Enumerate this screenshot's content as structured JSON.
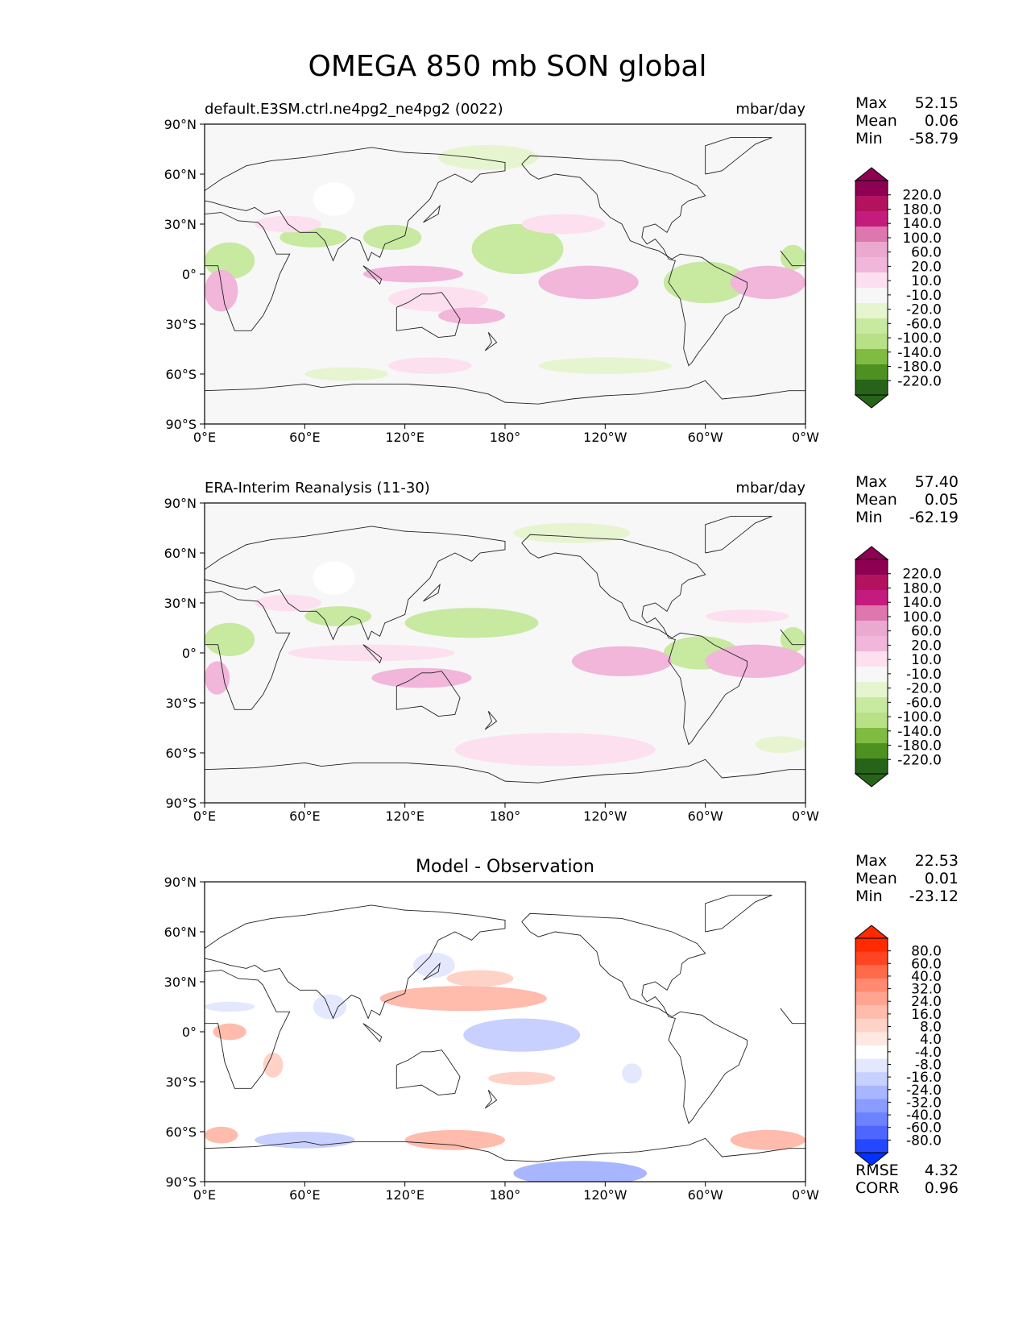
{
  "figure": {
    "title": "OMEGA 850 mb SON global"
  },
  "chart_data": [
    {
      "type": "heatmap",
      "panel": "model",
      "title_left": "default.E3SM.ctrl.ne4pg2_ne4pg2 (0022)",
      "title_right": "mbar/day",
      "stats": [
        {
          "label": "Max",
          "value": "52.15"
        },
        {
          "label": "Mean",
          "value": "0.06"
        },
        {
          "label": "Min",
          "value": "-58.79"
        }
      ],
      "x_ticks": [
        "0°E",
        "60°E",
        "120°E",
        "180°",
        "120°W",
        "60°W",
        "0°W"
      ],
      "y_ticks": [
        "90°N",
        "60°N",
        "30°N",
        "0°",
        "30°S",
        "60°S",
        "90°S"
      ],
      "colorbar": {
        "labels": [
          "220.0",
          "180.0",
          "140.0",
          "100.0",
          "60.0",
          "20.0",
          "10.0",
          "-10.0",
          "-20.0",
          "-60.0",
          "-100.0",
          "-140.0",
          "-180.0",
          "-220.0"
        ],
        "colors": [
          "#8e0152",
          "#b3125e",
          "#c51b7d",
          "#de77ae",
          "#eba9d0",
          "#f1b6da",
          "#fde0ef",
          "#f7f7f7",
          "#e6f5d0",
          "#c7e9a0",
          "#b8e186",
          "#7fbc41",
          "#4d9221",
          "#276419"
        ],
        "over_color": "#8e0152",
        "under_color": "#276419"
      },
      "regions": [
        {
          "lon": 0,
          "lat": 8,
          "w": 30,
          "h": 22,
          "value": -30
        },
        {
          "lon": 45,
          "lat": 22,
          "w": 40,
          "h": 12,
          "value": -30
        },
        {
          "lon": 95,
          "lat": 22,
          "w": 35,
          "h": 15,
          "value": -30
        },
        {
          "lon": 160,
          "lat": 15,
          "w": 55,
          "h": 30,
          "value": -30
        },
        {
          "lon": 275,
          "lat": -5,
          "w": 50,
          "h": 25,
          "value": -30
        },
        {
          "lon": 345,
          "lat": 10,
          "w": 15,
          "h": 15,
          "value": -30
        },
        {
          "lon": 140,
          "lat": 70,
          "w": 60,
          "h": 15,
          "value": -15
        },
        {
          "lon": 200,
          "lat": -55,
          "w": 80,
          "h": 10,
          "value": -15
        },
        {
          "lon": 60,
          "lat": -60,
          "w": 50,
          "h": 8,
          "value": -15
        },
        {
          "lon": 0,
          "lat": -10,
          "w": 20,
          "h": 25,
          "value": 30
        },
        {
          "lon": 30,
          "lat": 30,
          "w": 40,
          "h": 10,
          "value": 15
        },
        {
          "lon": 95,
          "lat": 0,
          "w": 60,
          "h": 10,
          "value": 30
        },
        {
          "lon": 110,
          "lat": -15,
          "w": 60,
          "h": 15,
          "value": 15
        },
        {
          "lon": 200,
          "lat": -5,
          "w": 60,
          "h": 20,
          "value": 30
        },
        {
          "lon": 190,
          "lat": 30,
          "w": 50,
          "h": 12,
          "value": 15
        },
        {
          "lon": 315,
          "lat": -5,
          "w": 45,
          "h": 20,
          "value": 30
        },
        {
          "lon": 110,
          "lat": -55,
          "w": 50,
          "h": 10,
          "value": 15
        },
        {
          "lon": 140,
          "lat": -25,
          "w": 40,
          "h": 10,
          "value": 30
        }
      ],
      "blanks": [
        {
          "lon": 65,
          "lat": 45,
          "w": 25,
          "h": 20
        },
        {
          "lon": 280,
          "lat": -78,
          "w": 60,
          "h": 12
        }
      ]
    },
    {
      "type": "heatmap",
      "panel": "observation",
      "title_left": "ERA-Interim Reanalysis (11-30)",
      "title_right": "mbar/day",
      "stats": [
        {
          "label": "Max",
          "value": "57.40"
        },
        {
          "label": "Mean",
          "value": "0.05"
        },
        {
          "label": "Min",
          "value": "-62.19"
        }
      ],
      "x_ticks": [
        "0°E",
        "60°E",
        "120°E",
        "180°",
        "120°W",
        "60°W",
        "0°W"
      ],
      "y_ticks": [
        "90°N",
        "60°N",
        "30°N",
        "0°",
        "30°S",
        "60°S",
        "90°S"
      ],
      "colorbar": {
        "labels": [
          "220.0",
          "180.0",
          "140.0",
          "100.0",
          "60.0",
          "20.0",
          "10.0",
          "-10.0",
          "-20.0",
          "-60.0",
          "-100.0",
          "-140.0",
          "-180.0",
          "-220.0"
        ],
        "colors": [
          "#8e0152",
          "#b3125e",
          "#c51b7d",
          "#de77ae",
          "#eba9d0",
          "#f1b6da",
          "#fde0ef",
          "#f7f7f7",
          "#e6f5d0",
          "#c7e9a0",
          "#b8e186",
          "#7fbc41",
          "#4d9221",
          "#276419"
        ],
        "over_color": "#8e0152",
        "under_color": "#276419"
      },
      "regions": [
        {
          "lon": 0,
          "lat": 8,
          "w": 30,
          "h": 20,
          "value": -30
        },
        {
          "lon": 60,
          "lat": 22,
          "w": 40,
          "h": 12,
          "value": -30
        },
        {
          "lon": 120,
          "lat": 18,
          "w": 80,
          "h": 18,
          "value": -30
        },
        {
          "lon": 275,
          "lat": 0,
          "w": 45,
          "h": 20,
          "value": -30
        },
        {
          "lon": 345,
          "lat": 8,
          "w": 15,
          "h": 15,
          "value": -30
        },
        {
          "lon": 185,
          "lat": 72,
          "w": 70,
          "h": 12,
          "value": -15
        },
        {
          "lon": 330,
          "lat": -55,
          "w": 30,
          "h": 10,
          "value": -15
        },
        {
          "lon": 0,
          "lat": -15,
          "w": 15,
          "h": 20,
          "value": 30
        },
        {
          "lon": 50,
          "lat": 0,
          "w": 100,
          "h": 10,
          "value": 15
        },
        {
          "lon": 100,
          "lat": -15,
          "w": 60,
          "h": 12,
          "value": 30
        },
        {
          "lon": 220,
          "lat": -5,
          "w": 60,
          "h": 18,
          "value": 30
        },
        {
          "lon": 300,
          "lat": -5,
          "w": 60,
          "h": 20,
          "value": 30
        },
        {
          "lon": 150,
          "lat": -58,
          "w": 120,
          "h": 20,
          "value": 15
        },
        {
          "lon": 30,
          "lat": 30,
          "w": 40,
          "h": 10,
          "value": 15
        },
        {
          "lon": 300,
          "lat": 22,
          "w": 50,
          "h": 8,
          "value": 15
        }
      ],
      "blanks": [
        {
          "lon": 65,
          "lat": 45,
          "w": 25,
          "h": 20
        },
        {
          "lon": 290,
          "lat": -78,
          "w": 50,
          "h": 12
        }
      ]
    },
    {
      "type": "heatmap",
      "panel": "difference",
      "title_center": "Model - Observation",
      "stats": [
        {
          "label": "Max",
          "value": "22.53"
        },
        {
          "label": "Mean",
          "value": "0.01"
        },
        {
          "label": "Min",
          "value": "-23.12"
        }
      ],
      "extra_stats": [
        {
          "label": "RMSE",
          "value": "4.32"
        },
        {
          "label": "CORR",
          "value": "0.96"
        }
      ],
      "x_ticks": [
        "0°E",
        "60°E",
        "120°E",
        "180°",
        "120°W",
        "60°W",
        "0°W"
      ],
      "y_ticks": [
        "90°N",
        "60°N",
        "30°N",
        "0°",
        "30°S",
        "60°S",
        "90°S"
      ],
      "colorbar": {
        "labels": [
          "80.0",
          "60.0",
          "40.0",
          "32.0",
          "24.0",
          "16.0",
          "8.0",
          "4.0",
          "-4.0",
          "-8.0",
          "-16.0",
          "-24.0",
          "-32.0",
          "-40.0",
          "-60.0",
          "-80.0"
        ],
        "colors": [
          "#ff2a00",
          "#ff4422",
          "#ff6a4a",
          "#ff8a70",
          "#ffa490",
          "#ffbbac",
          "#ffd2c8",
          "#ffe8e2",
          "#ffffff",
          "#e3e8ff",
          "#c8d0ff",
          "#a8b6ff",
          "#8a9cff",
          "#6d82ff",
          "#4e66ff",
          "#2448ff"
        ],
        "over_color": "#ff2a00",
        "under_color": "#0033ff"
      },
      "regions": [
        {
          "lon": 5,
          "lat": 0,
          "w": 20,
          "h": 10,
          "value": 16
        },
        {
          "lon": 35,
          "lat": -20,
          "w": 12,
          "h": 15,
          "value": 8
        },
        {
          "lon": 105,
          "lat": 20,
          "w": 100,
          "h": 15,
          "value": 16
        },
        {
          "lon": 145,
          "lat": 32,
          "w": 40,
          "h": 10,
          "value": 8
        },
        {
          "lon": 170,
          "lat": -28,
          "w": 40,
          "h": 8,
          "value": 8
        },
        {
          "lon": 0,
          "lat": -62,
          "w": 20,
          "h": 10,
          "value": 16
        },
        {
          "lon": 120,
          "lat": -65,
          "w": 60,
          "h": 12,
          "value": 16
        },
        {
          "lon": 315,
          "lat": -65,
          "w": 45,
          "h": 12,
          "value": 16
        },
        {
          "lon": 155,
          "lat": -2,
          "w": 70,
          "h": 20,
          "value": -16
        },
        {
          "lon": 65,
          "lat": 15,
          "w": 20,
          "h": 15,
          "value": -8
        },
        {
          "lon": 0,
          "lat": 15,
          "w": 30,
          "h": 6,
          "value": -8
        },
        {
          "lon": 125,
          "lat": 40,
          "w": 25,
          "h": 15,
          "value": -8
        },
        {
          "lon": 250,
          "lat": -25,
          "w": 12,
          "h": 12,
          "value": -8
        },
        {
          "lon": 30,
          "lat": -65,
          "w": 60,
          "h": 10,
          "value": -16
        },
        {
          "lon": 185,
          "lat": -85,
          "w": 80,
          "h": 15,
          "value": -24
        }
      ],
      "blanks": []
    }
  ]
}
